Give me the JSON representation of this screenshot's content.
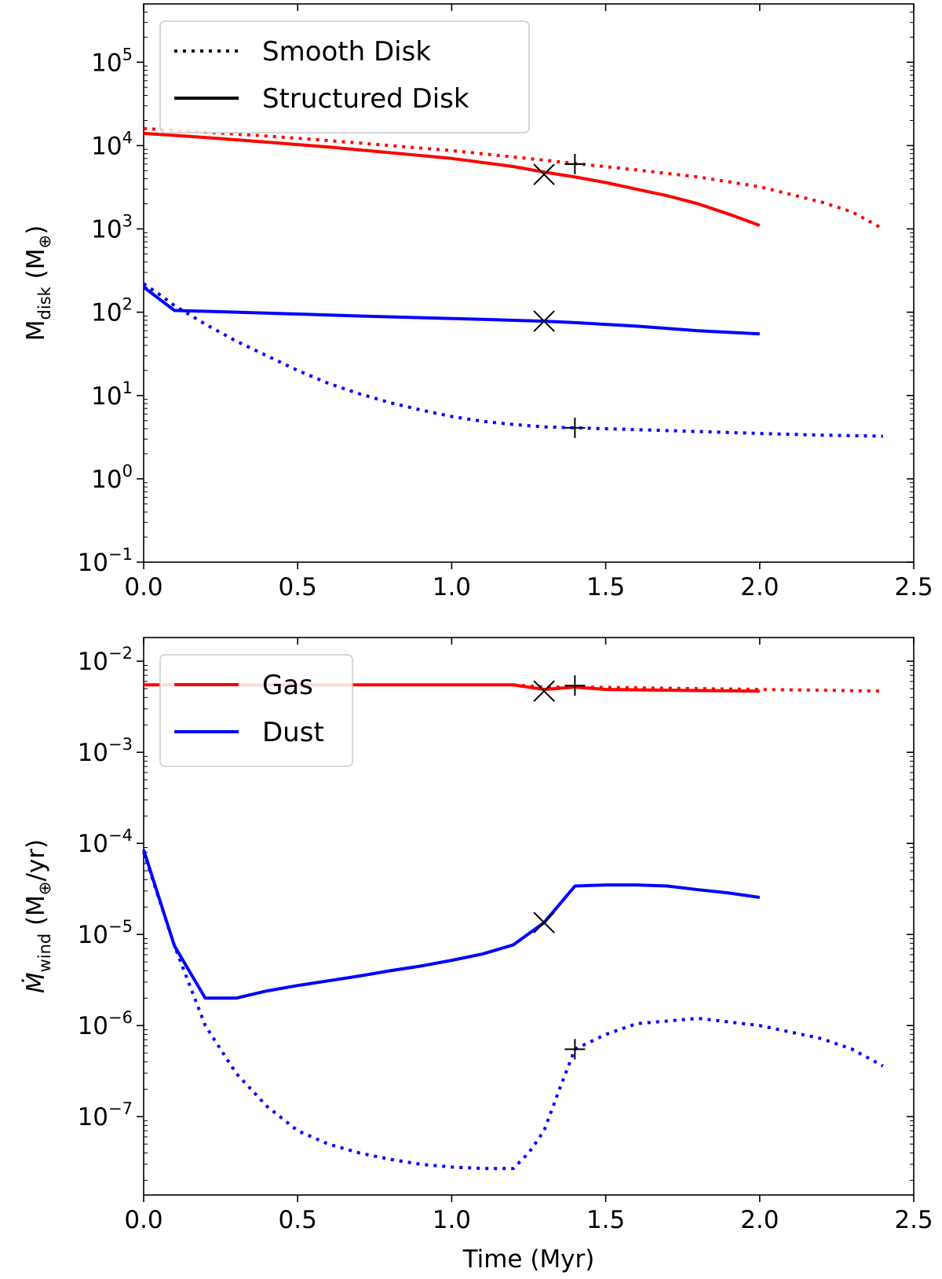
{
  "chart_data": [
    {
      "type": "line",
      "id": "top",
      "title": "",
      "xlabel": "",
      "ylabel_main": "M",
      "ylabel_sub": "disk",
      "ylabel_unit": "(M",
      "ylabel_unit_sub": "⊕",
      "ylabel_close": ")",
      "xlim": [
        0,
        2.5
      ],
      "ylim_exp": [
        -1,
        5.7
      ],
      "yscale": "log",
      "x_ticks": [
        "0.0",
        "0.5",
        "1.0",
        "1.5",
        "2.0",
        "2.5"
      ],
      "x_tick_values": [
        0,
        0.5,
        1.0,
        1.5,
        2.0,
        2.5
      ],
      "y_tick_exponents": [
        -1,
        0,
        1,
        2,
        3,
        4,
        5
      ],
      "y_tick_labels": [
        "10−1",
        "100",
        "101",
        "102",
        "103",
        "104",
        "105"
      ],
      "legend": {
        "position": "top-left",
        "entries": [
          {
            "label": "Smooth Disk",
            "style": "dotted",
            "color": "#000000"
          },
          {
            "label": "Structured Disk",
            "style": "solid",
            "color": "#000000"
          }
        ]
      },
      "series": [
        {
          "name": "Gas smooth",
          "color": "#ff0000",
          "style": "dotted",
          "x": [
            0,
            0.2,
            0.4,
            0.6,
            0.8,
            1.0,
            1.2,
            1.4,
            1.6,
            1.8,
            2.0,
            2.2,
            2.3,
            2.4
          ],
          "y": [
            16000,
            14500,
            13000,
            11500,
            10000,
            8700,
            7300,
            6100,
            5100,
            4200,
            3200,
            2100,
            1600,
            1000
          ]
        },
        {
          "name": "Gas structured",
          "color": "#ff0000",
          "style": "solid",
          "x": [
            0,
            0.2,
            0.4,
            0.6,
            0.8,
            1.0,
            1.2,
            1.3,
            1.4,
            1.5,
            1.6,
            1.7,
            1.8,
            1.9,
            2.0
          ],
          "y": [
            14000,
            12500,
            11000,
            9600,
            8200,
            7000,
            5600,
            4800,
            4200,
            3600,
            3000,
            2500,
            2000,
            1500,
            1100
          ]
        },
        {
          "name": "Dust smooth",
          "color": "#0000ff",
          "style": "dotted",
          "x": [
            0,
            0.05,
            0.1,
            0.2,
            0.3,
            0.4,
            0.5,
            0.6,
            0.7,
            0.8,
            0.9,
            1.0,
            1.1,
            1.2,
            1.3,
            1.4,
            1.6,
            1.8,
            2.0,
            2.2,
            2.4
          ],
          "y": [
            220,
            165,
            120,
            72,
            45,
            30,
            20,
            14,
            10.5,
            8.2,
            6.7,
            5.6,
            4.9,
            4.5,
            4.2,
            4.1,
            3.9,
            3.7,
            3.5,
            3.35,
            3.25
          ]
        },
        {
          "name": "Dust structured",
          "color": "#0000ff",
          "style": "solid",
          "x": [
            0,
            0.1,
            0.3,
            0.5,
            0.7,
            0.9,
            1.1,
            1.3,
            1.4,
            1.6,
            1.8,
            2.0
          ],
          "y": [
            200,
            105,
            100,
            95,
            90,
            86,
            82,
            78,
            75,
            68,
            60,
            55
          ]
        }
      ],
      "markers": [
        {
          "symbol": "x",
          "x": 1.3,
          "y": 4500
        },
        {
          "symbol": "+",
          "x": 1.4,
          "y": 6000
        },
        {
          "symbol": "x",
          "x": 1.3,
          "y": 78
        },
        {
          "symbol": "+",
          "x": 1.4,
          "y": 4.1
        }
      ]
    },
    {
      "type": "line",
      "id": "bottom",
      "title": "",
      "xlabel": "Time (Myr)",
      "ylabel_main": "M",
      "ylabel_sub": "wind",
      "ylabel_unit": "(M",
      "ylabel_unit_sub": "⊕",
      "ylabel_close": "/yr)",
      "xlim": [
        0,
        2.5
      ],
      "ylim_exp": [
        -7.86,
        -1.74
      ],
      "yscale": "log",
      "x_ticks": [
        "0.0",
        "0.5",
        "1.0",
        "1.5",
        "2.0",
        "2.5"
      ],
      "x_tick_values": [
        0,
        0.5,
        1.0,
        1.5,
        2.0,
        2.5
      ],
      "y_tick_exponents": [
        -7,
        -6,
        -5,
        -4,
        -3,
        -2
      ],
      "y_tick_labels": [
        "10−7",
        "10−6",
        "10−5",
        "10−4",
        "10−3",
        "10−2"
      ],
      "legend": {
        "position": "top-left",
        "entries": [
          {
            "label": "Gas",
            "style": "solid",
            "color": "#ff0000"
          },
          {
            "label": "Dust",
            "style": "solid",
            "color": "#0000ff"
          }
        ]
      },
      "series": [
        {
          "name": "Gas smooth",
          "color": "#ff0000",
          "style": "dotted",
          "x": [
            1.2,
            1.3,
            1.4,
            1.6,
            1.8,
            2.0,
            2.2,
            2.4
          ],
          "y": [
            0.0055,
            0.0052,
            0.0052,
            0.0051,
            0.005,
            0.0049,
            0.0048,
            0.0047
          ]
        },
        {
          "name": "Gas structured",
          "color": "#ff0000",
          "style": "solid",
          "x": [
            0,
            0.4,
            0.8,
            1.2,
            1.3,
            1.4,
            1.5,
            1.7,
            2.0
          ],
          "y": [
            0.0055,
            0.0055,
            0.0055,
            0.0055,
            0.0049,
            0.0052,
            0.0049,
            0.0048,
            0.0047
          ]
        },
        {
          "name": "Dust smooth",
          "color": "#0000ff",
          "style": "dotted",
          "x": [
            0,
            0.1,
            0.2,
            0.3,
            0.4,
            0.5,
            0.6,
            0.7,
            0.8,
            0.9,
            1.0,
            1.1,
            1.2,
            1.25,
            1.3,
            1.35,
            1.4,
            1.5,
            1.6,
            1.8,
            2.0,
            2.2,
            2.3,
            2.4
          ],
          "y": [
            8e-05,
            7.5e-06,
            1e-06,
            3e-07,
            1.3e-07,
            7e-08,
            5e-08,
            4e-08,
            3.4e-08,
            3e-08,
            2.8e-08,
            2.7e-08,
            2.7e-08,
            4e-08,
            7e-08,
            2e-07,
            5.5e-07,
            8e-07,
            1.05e-06,
            1.2e-06,
            1e-06,
            7.2e-07,
            5.5e-07,
            3.6e-07
          ]
        },
        {
          "name": "Dust structured",
          "color": "#0000ff",
          "style": "solid",
          "x": [
            0,
            0.1,
            0.2,
            0.3,
            0.4,
            0.5,
            0.6,
            0.7,
            0.8,
            0.9,
            1.0,
            1.1,
            1.2,
            1.3,
            1.4,
            1.5,
            1.6,
            1.7,
            1.8,
            1.9,
            2.0
          ],
          "y": [
            8.5e-05,
            7.5e-06,
            2e-06,
            2e-06,
            2.4e-06,
            2.75e-06,
            3.1e-06,
            3.5e-06,
            4e-06,
            4.5e-06,
            5.2e-06,
            6.1e-06,
            7.7e-06,
            1.35e-05,
            3.4e-05,
            3.5e-05,
            3.5e-05,
            3.4e-05,
            3.1e-05,
            2.85e-05,
            2.55e-05
          ]
        }
      ],
      "markers": [
        {
          "symbol": "x",
          "x": 1.3,
          "y": 0.0047
        },
        {
          "symbol": "+",
          "x": 1.4,
          "y": 0.0054
        },
        {
          "symbol": "x",
          "x": 1.3,
          "y": 1.35e-05
        },
        {
          "symbol": "+",
          "x": 1.4,
          "y": 5.5e-07
        }
      ]
    }
  ]
}
